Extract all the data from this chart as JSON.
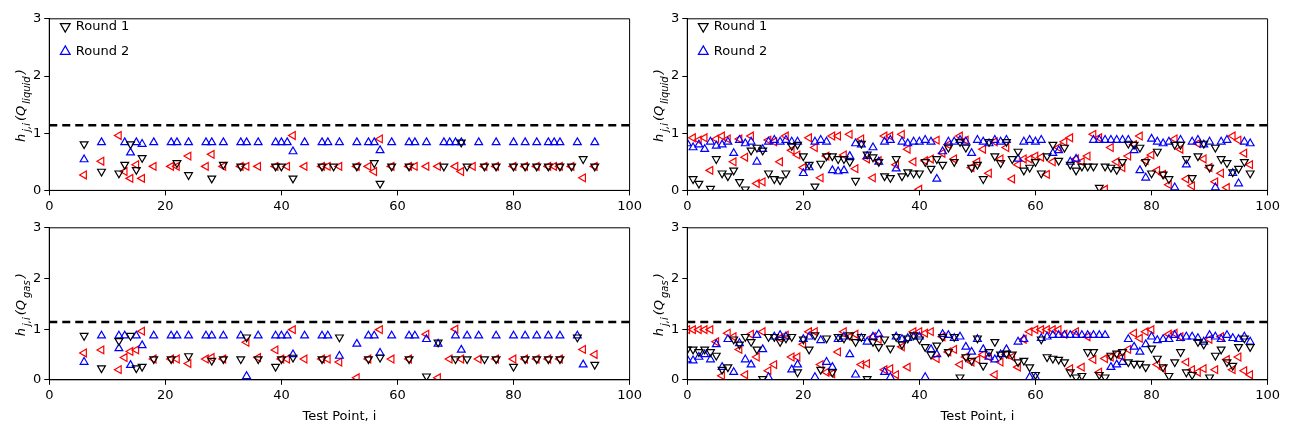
{
  "chart_data": [
    {
      "type": "scatter",
      "ylabel": "h$_{j,i}$(Q$_{liquid}$)",
      "xlim": [
        0,
        100
      ],
      "ylim": [
        0,
        3
      ],
      "xticks": [
        0,
        20,
        40,
        60,
        80,
        100
      ],
      "yticks": [
        0,
        1,
        2,
        3
      ],
      "grid": false,
      "legend": "top left",
      "marker": "triangle",
      "ref_lines": [
        {
          "axis": "y",
          "value": 1.14,
          "color": "#000000",
          "line_style": "dashed"
        }
      ],
      "series": [
        {
          "name": "Round 1",
          "color": "#000000",
          "x": [
            6,
            9,
            12,
            13,
            14,
            15,
            16,
            22,
            24,
            28,
            30,
            33,
            39,
            40,
            42,
            47,
            49,
            53,
            56,
            57,
            59,
            62,
            68,
            71,
            72,
            75,
            77,
            80,
            82,
            84,
            86,
            88,
            90,
            92,
            94
          ],
          "values": [
            0.81,
            0.33,
            0.3,
            0.45,
            0.81,
            0.36,
            0.57,
            0.48,
            0.27,
            0.21,
            0.45,
            0.42,
            0.42,
            0.42,
            0.21,
            0.42,
            0.42,
            0.42,
            0.48,
            0.12,
            0.42,
            0.42,
            0.42,
            0.84,
            0.42,
            0.42,
            0.42,
            0.42,
            0.42,
            0.42,
            0.42,
            0.42,
            0.42,
            0.55,
            0.42
          ]
        },
        {
          "name": "Round 2",
          "color": "#0000ff",
          "x": [
            6,
            9,
            13,
            14,
            15,
            16,
            18,
            21,
            22,
            24,
            27,
            28,
            30,
            33,
            34,
            36,
            39,
            40,
            41,
            42,
            44,
            47,
            48,
            50,
            53,
            55,
            56,
            57,
            59,
            62,
            63,
            65,
            68,
            69,
            70,
            71,
            74,
            77,
            80,
            82,
            84,
            86,
            87,
            88,
            91,
            94
          ],
          "values": [
            0.54,
            0.84,
            0.84,
            0.66,
            0.84,
            0.81,
            0.84,
            0.84,
            0.84,
            0.84,
            0.84,
            0.84,
            0.84,
            0.84,
            0.84,
            0.84,
            0.84,
            0.84,
            0.84,
            0.68,
            0.84,
            0.84,
            0.84,
            0.84,
            0.84,
            0.84,
            0.84,
            0.7,
            0.84,
            0.84,
            0.84,
            0.84,
            0.84,
            0.84,
            0.84,
            0.84,
            0.84,
            0.84,
            0.84,
            0.84,
            0.84,
            0.84,
            0.84,
            0.84,
            0.84,
            0.84
          ]
        },
        {
          "color": "#ff0000",
          "x": [
            6,
            9,
            12,
            13,
            14,
            15,
            16,
            18,
            21,
            22,
            24,
            27,
            28,
            30,
            33,
            34,
            36,
            39,
            41,
            42,
            44,
            47,
            48,
            50,
            53,
            55,
            56,
            57,
            59,
            62,
            63,
            65,
            67,
            70,
            71,
            73,
            75,
            77,
            80,
            82,
            84,
            86,
            87,
            88,
            90,
            92,
            94
          ],
          "values": [
            0.27,
            0.51,
            0.96,
            0.33,
            0.21,
            0.45,
            0.21,
            0.42,
            0.42,
            0.42,
            0.6,
            0.42,
            0.63,
            0.42,
            0.42,
            0.42,
            0.42,
            0.42,
            0.42,
            0.96,
            0.42,
            0.42,
            0.42,
            0.42,
            0.42,
            0.42,
            0.33,
            0.9,
            0.42,
            0.42,
            0.42,
            0.42,
            0.42,
            0.42,
            0.33,
            0.42,
            0.42,
            0.42,
            0.42,
            0.42,
            0.42,
            0.42,
            0.42,
            0.42,
            0.42,
            0.22,
            0.42
          ]
        }
      ]
    },
    {
      "type": "scatter",
      "ylabel": "h$_{j,i}$(Q$_{liquid}$)",
      "xlim": [
        0,
        100
      ],
      "ylim": [
        0,
        3
      ],
      "xticks": [
        0,
        20,
        40,
        60,
        80,
        100
      ],
      "yticks": [
        0,
        1,
        2,
        3
      ],
      "grid": false,
      "legend": "top left",
      "marker": "triangle",
      "ref_lines": [
        {
          "axis": "y",
          "value": 1.14,
          "color": "#000000",
          "line_style": "dashed"
        }
      ],
      "x": [
        0,
        1,
        2,
        3,
        4,
        5,
        6,
        7,
        8,
        9,
        10,
        11,
        12,
        13,
        14,
        15,
        16,
        17,
        18,
        19,
        20,
        21,
        22,
        23,
        24,
        25,
        26,
        27,
        28,
        29,
        30,
        31,
        32,
        33,
        34,
        35,
        36,
        37,
        38,
        39,
        40,
        41,
        42,
        43,
        44,
        45,
        46,
        47,
        48,
        49,
        50,
        51,
        52,
        53,
        54,
        55,
        56,
        57,
        58,
        59,
        60,
        61,
        62,
        63,
        64,
        65,
        66,
        67,
        68,
        69,
        70,
        71,
        72,
        73,
        74,
        75,
        76,
        77,
        78,
        79,
        80,
        81,
        82,
        83,
        84,
        85,
        86,
        87,
        88,
        89,
        90,
        91,
        92,
        93,
        94,
        95,
        96,
        97
      ],
      "series": [
        {
          "name": "Round 1",
          "color": "#000000",
          "values": [
            null,
            0.2,
            0.12,
            null,
            0.03,
            0.55,
            0.3,
            0.25,
            0.35,
            0.15,
            0.02,
            0.7,
            0.75,
            0.7,
            0.3,
            0.2,
            0.18,
            0.3,
            0.78,
            0.8,
            0.6,
            0.45,
            0.07,
            0.47,
            0.6,
            0.6,
            0.55,
            0.55,
            0.5,
            0.17,
            0.82,
            0.63,
            0.58,
            0.5,
            0.25,
            0.22,
            0.55,
            0.25,
            0.32,
            0.3,
            0.3,
            0.5,
            0.38,
            0.55,
            0.45,
            0.75,
            0.5,
            0.85,
            0.75,
            0.4,
            0.45,
            0.2,
            0.85,
            0.6,
            0.48,
            0.85,
            0.55,
            0.68,
            0.35,
            0.4,
            0.5,
            0.3,
            0.6,
            0.8,
            0.52,
            0.75,
            0.45,
            0.35,
            0.42,
            0.42,
            0.42,
            0.05,
            0.42,
            0.4,
            0.36,
            0.5,
            0.82,
            0.8,
            0.75,
            0.5,
            0.3,
            0.68,
            0.28,
            0.2,
            0.8,
            0.8,
            0.55,
            0.22,
            0.6,
            0.82,
            0.4,
            0.75,
            0.55,
            0.48,
            0.32,
            0.38,
            0.5,
            0.3
          ]
        },
        {
          "name": "Round 2",
          "color": "#0000ff",
          "values": [
            0.82,
            0.75,
            0.8,
            0.72,
            0.85,
            0.78,
            0.8,
            0.85,
            0.65,
            0.88,
            0.82,
            0.85,
            0.5,
            0.72,
            0.85,
            0.88,
            0.85,
            0.88,
            0.85,
            0.85,
            0.3,
            0.4,
            0.85,
            0.88,
            0.85,
            0.35,
            0.33,
            0.35,
            0.6,
            0.82,
            0.8,
            0.6,
            0.75,
            0.5,
            0.85,
            0.88,
            0.38,
            0.85,
            0.82,
            0.85,
            0.85,
            0.88,
            0.85,
            0.2,
            0.68,
            0.85,
            0.85,
            0.88,
            0.85,
            0.65,
            0.88,
            0.85,
            0.82,
            0.88,
            0.85,
            0.88,
            null,
            0.55,
            0.85,
            0.88,
            0.85,
            0.88,
            null,
            0.65,
            0.7,
            null,
            0.5,
            0.55,
            null,
            null,
            0.88,
            0.88,
            0.88,
            0.88,
            0.88,
            0.88,
            0.88,
            0.7,
            0.35,
            0.22,
            0.9,
            0.85,
            0.82,
            0.85,
            0.05,
            0.88,
            0.45,
            0.85,
            0.88,
            0.8,
            0.85,
            0.05,
            0.85,
            0.88,
            0.3,
            0.12,
            0.85,
            0.82
          ]
        },
        {
          "color": "#ff0000",
          "values": [
            null,
            0.92,
            0.88,
            0.92,
            0.35,
            0.9,
            0.95,
            0.9,
            0.5,
            0.9,
            0.58,
            0.95,
            0.12,
            0.15,
            0.88,
            0.85,
            0.5,
            0.95,
            0.7,
            0.62,
            0.4,
            0.92,
            0.75,
            0.22,
            0.6,
            0.95,
            0.95,
            0.62,
            0.98,
            0.38,
            0.9,
            0.55,
            0.22,
            0.52,
            0.95,
            0.95,
            0.45,
            0.98,
            0.72,
            0.5,
            0.02,
            0.52,
            0.55,
            0.88,
            0.65,
            0.8,
            0.55,
            0.95,
            0.88,
            0.4,
            0.5,
            0.72,
            0.3,
            0.85,
            0.55,
            0.75,
            0.2,
            0.45,
            0.55,
            0.55,
            0.6,
            0.58,
            0.28,
            0.5,
            0.75,
            0.85,
            0.92,
            0.55,
            0.5,
            0.6,
            0.98,
            0.92,
            0.02,
            0.75,
            0.5,
            0.4,
            0.6,
            0.8,
            0.95,
            0.52,
            0.62,
            0.35,
            0.28,
            0.1,
            0.9,
            0.72,
            0.2,
            0.08,
            0.82,
            0.55,
            0.4,
            0.15,
            0.3,
            0.05,
            0.95,
            0.88,
            0.65,
            0.45
          ]
        }
      ]
    },
    {
      "type": "scatter",
      "ylabel": "h$_{j,i}$(Q$_{gas}$)",
      "xlabel": "Test Point, i",
      "xlim": [
        0,
        100
      ],
      "ylim": [
        0,
        3
      ],
      "xticks": [
        0,
        20,
        40,
        60,
        80,
        100
      ],
      "yticks": [
        0,
        1,
        2,
        3
      ],
      "grid": false,
      "marker": "triangle",
      "ref_lines": [
        {
          "axis": "y",
          "value": 1.14,
          "color": "#000000",
          "line_style": "dashed"
        }
      ],
      "series": [
        {
          "color": "#000000",
          "x": [
            6,
            9,
            12,
            14,
            15,
            16,
            18,
            21,
            24,
            28,
            30,
            33,
            34,
            36,
            39,
            40,
            42,
            47,
            50,
            55,
            57,
            62,
            65,
            67,
            70,
            72,
            75,
            77,
            80,
            82,
            84,
            86,
            88,
            91,
            94
          ],
          "values": [
            0.87,
            0.23,
            0.77,
            0.87,
            0.23,
            0.26,
            0.41,
            0.41,
            0.47,
            0.38,
            0.41,
            0.41,
            0.84,
            0.41,
            0.26,
            0.41,
            0.44,
            0.41,
            0.84,
            0.41,
            0.44,
            0.41,
            0.07,
            0.74,
            0.41,
            0.41,
            0.41,
            0.41,
            0.26,
            0.41,
            0.41,
            0.41,
            0.41,
            0.84,
            0.3
          ]
        },
        {
          "color": "#0000ff",
          "x": [
            6,
            9,
            12,
            12,
            13,
            14,
            15,
            16,
            18,
            21,
            22,
            24,
            27,
            28,
            30,
            33,
            34,
            36,
            39,
            40,
            41,
            42,
            44,
            47,
            48,
            50,
            53,
            55,
            56,
            57,
            59,
            62,
            63,
            65,
            67,
            70,
            71,
            72,
            74,
            77,
            80,
            82,
            84,
            86,
            88,
            91,
            92
          ],
          "values": [
            0.35,
            0.87,
            0.87,
            0.62,
            0.87,
            0.29,
            0.87,
            0.68,
            0.87,
            0.87,
            0.87,
            0.87,
            0.87,
            0.87,
            0.87,
            0.87,
            0.07,
            0.87,
            0.87,
            0.87,
            0.87,
            0.5,
            0.87,
            0.87,
            0.87,
            0.47,
            0.71,
            0.87,
            0.87,
            0.53,
            0.87,
            0.87,
            0.87,
            0.8,
            0.71,
            0.87,
            0.59,
            0.87,
            0.87,
            0.87,
            0.87,
            0.87,
            0.87,
            0.87,
            0.87,
            0.87,
            0.3
          ]
        },
        {
          "color": "#ff0000",
          "x": [
            6,
            9,
            12,
            13,
            14,
            15,
            16,
            18,
            21,
            22,
            24,
            27,
            28,
            30,
            34,
            36,
            39,
            40,
            41,
            42,
            44,
            47,
            48,
            50,
            53,
            55,
            57,
            59,
            62,
            65,
            67,
            69,
            70,
            71,
            74,
            77,
            80,
            82,
            84,
            86,
            88,
            92,
            94
          ],
          "values": [
            0.53,
            0.59,
            0.2,
            0.44,
            0.56,
            0.59,
            0.96,
            0.41,
            0.41,
            0.41,
            0.32,
            0.41,
            0.44,
            0.41,
            0.74,
            0.44,
            0.59,
            0.41,
            0.41,
            0.99,
            0.41,
            0.41,
            0.41,
            0.35,
            0.04,
            0.41,
            0.99,
            0.41,
            0.41,
            0.9,
            0.04,
            0.41,
            1.0,
            0.41,
            0.41,
            0.41,
            0.41,
            0.41,
            0.41,
            0.41,
            0.41,
            0.6,
            0.5
          ]
        }
      ]
    },
    {
      "type": "scatter",
      "ylabel": "h$_{j,i}$(Q$_{gas}$)",
      "xlabel": "Test Point, i",
      "xlim": [
        0,
        100
      ],
      "ylim": [
        0,
        3
      ],
      "xticks": [
        0,
        20,
        40,
        60,
        80,
        100
      ],
      "yticks": [
        0,
        1,
        2,
        3
      ],
      "grid": false,
      "marker": "triangle",
      "ref_lines": [
        {
          "axis": "y",
          "value": 1.14,
          "color": "#000000",
          "line_style": "dashed"
        }
      ],
      "x": [
        0,
        1,
        2,
        3,
        4,
        5,
        6,
        7,
        8,
        9,
        10,
        11,
        12,
        13,
        14,
        15,
        16,
        17,
        18,
        19,
        20,
        21,
        22,
        23,
        24,
        25,
        26,
        27,
        28,
        29,
        30,
        31,
        32,
        33,
        34,
        35,
        36,
        37,
        38,
        39,
        40,
        41,
        42,
        43,
        44,
        45,
        46,
        47,
        48,
        49,
        50,
        51,
        52,
        53,
        54,
        55,
        56,
        57,
        58,
        59,
        60,
        61,
        62,
        63,
        64,
        65,
        66,
        67,
        68,
        69,
        70,
        71,
        72,
        73,
        74,
        75,
        76,
        77,
        78,
        79,
        80,
        81,
        82,
        83,
        84,
        85,
        86,
        87,
        88,
        89,
        90,
        91,
        92,
        93,
        94,
        95,
        96,
        97
      ],
      "series": [
        {
          "color": "#000000",
          "values": [
            0.6,
            0.6,
            0.55,
            0.6,
            0.55,
            0.48,
            0.2,
            0.25,
            0.8,
            0.7,
            0.85,
            0.75,
            0.6,
            0.02,
            0.85,
            0.85,
            0.75,
            0.82,
            0.85,
            0.15,
            0.8,
            0.6,
            0.88,
            0.2,
            0.82,
            0.15,
            0.85,
            0.82,
            0.88,
            0.75,
            0.85,
            0.02,
            0.75,
            0.65,
            0.8,
            0.62,
            0.85,
            0.7,
            0.82,
            0.88,
            0.8,
            0.65,
            0.5,
            0.68,
            0.85,
            0.55,
            0.85,
            0.05,
            0.45,
            0.38,
            0.82,
            0.28,
            0.55,
            0.75,
            0.5,
            0.52,
            0.5,
            0.35,
            0.38,
            0.25,
            0.1,
            0.8,
            0.45,
            0.42,
            0.4,
            0.35,
            0.15,
            0.05,
            0.08,
            0.55,
            0.55,
            0.1,
            0.05,
            0.48,
            0.52,
            0.55,
            0.35,
            0.32,
            0.32,
            0.25,
            0.62,
            0.42,
            0.25,
            0.08,
            0.35,
            0.55,
            0.15,
            0.1,
            0.75,
            0.7,
            0.05,
            0.48,
            0.6,
            0.35,
            0.28,
            0.65,
            0.82,
            0.65
          ]
        },
        {
          "color": "#0000ff",
          "values": [
            0.4,
            0.38,
            0.45,
            0.5,
            0.4,
            0.7,
            0.25,
            0.8,
            0.15,
            0.72,
            0.4,
            0.3,
            0.88,
            0.6,
            0.05,
            0.85,
            0.88,
            0.85,
            0.2,
            0.3,
            0.8,
            0.85,
            0.05,
            0.78,
            0.35,
            0.25,
            0.8,
            0.85,
            0.5,
            0.1,
            0.82,
            0.75,
            0.85,
            0.9,
            0.15,
            0.05,
            0.85,
            0.8,
            0.82,
            0.85,
            0.85,
            0.05,
            0.6,
            0.5,
            0.9,
            0.88,
            0.82,
            0.85,
            0.65,
            0.55,
            0.8,
            0.6,
            0.45,
            0.4,
            0.5,
            0.6,
            null,
            0.75,
            0.8,
            0.05,
            0.05,
            0.82,
            0.85,
            0.88,
            0.88,
            0.88,
            0.88,
            0.88,
            0.88,
            0.88,
            0.88,
            0.88,
            0.88,
            0.25,
            0.3,
            0.35,
            0.8,
            0.65,
            0.55,
            0.7,
            0.85,
            0.78,
            0.8,
            0.8,
            0.88,
            0.82,
            0.85,
            0.85,
            0.82,
            0.75,
            0.88,
            0.85,
            0.8,
            0.88,
            0.82,
            0.8,
            0.85,
            0.75
          ]
        },
        {
          "color": "#ff0000",
          "values": [
            0.99,
            0.99,
            0.99,
            0.99,
            0.99,
            0.75,
            0.08,
            0.92,
            0.85,
            0.6,
            0.1,
            0.9,
            0.45,
            0.95,
            0.18,
            0.3,
            0.82,
            0.88,
            0.45,
            0.45,
            0.7,
            0.95,
            0.95,
            0.3,
            0.15,
            0.12,
            0.55,
            0.95,
            0.85,
            0.9,
            0.3,
            0.32,
            0.85,
            0.8,
            0.2,
            0.22,
            0.1,
            0.65,
            0.25,
            0.95,
            0.95,
            0.92,
            0.95,
            0.42,
            0.85,
            0.55,
            0.6,
            0.3,
            0.45,
            0.35,
            0.4,
            0.5,
            0.45,
            0.1,
            0.35,
            0.5,
            0.45,
            0.25,
            0.8,
            0.95,
            0.99,
            0.99,
            0.99,
            0.99,
            0.99,
            0.9,
            0.22,
            0.95,
            0.25,
            0.85,
            0.4,
            0.15,
            0.42,
            0.45,
            0.5,
            0.45,
            0.6,
            0.92,
            0.82,
            0.95,
            0.99,
            0.3,
            0.22,
            0.9,
            0.92,
            0.85,
            0.35,
            0.2,
            0.15,
            0.22,
            0.8,
            0.2,
            0.85,
            0.4,
            0.2,
            0.45,
            0.18,
            0.1
          ]
        }
      ]
    }
  ]
}
